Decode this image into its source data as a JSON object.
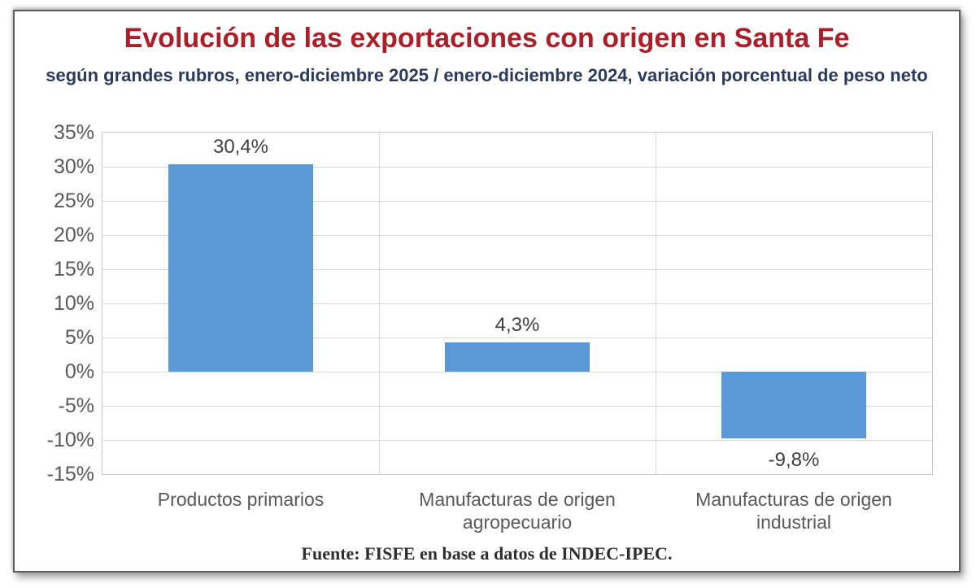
{
  "page": {
    "title": "Evolución de las exportaciones con origen en Santa Fe",
    "subtitle": "según grandes rubros, enero-diciembre 2025 / enero-diciembre 2024, variación porcentual de peso neto",
    "source": "Fuente: FISFE en base a datos de INDEC-IPEC."
  },
  "colors": {
    "title_color": "#a9202a",
    "subtitle_color": "#2b3a5b",
    "bar_color": "#5a99d5",
    "grid_color": "#d9d9d9",
    "axis_text": "#595959",
    "data_label": "#3f3f3f",
    "source_text": "#2e2e2e"
  },
  "chart_data": {
    "type": "bar",
    "title": "Evolución de las exportaciones con origen en Santa Fe",
    "subtitle": "según grandes rubros, enero-diciembre 2025 / enero-diciembre 2024, variación porcentual de peso neto",
    "categories": [
      "Productos primarios",
      "Manufacturas de origen agropecuario",
      "Manufacturas de origen industrial"
    ],
    "values": [
      30.4,
      4.3,
      -9.8
    ],
    "value_labels": [
      "30,4%",
      "4,3%",
      "-9,8%"
    ],
    "xlabel": "",
    "ylabel": "",
    "ylim": [
      -15,
      35
    ],
    "ytick_step": 5,
    "ytick_labels": [
      "35%",
      "30%",
      "25%",
      "20%",
      "15%",
      "10%",
      "5%",
      "0%",
      "-5%",
      "-10%",
      "-15%"
    ],
    "grid": true,
    "legend": "none",
    "annotation": "Fuente: FISFE en base a datos de INDEC-IPEC."
  }
}
